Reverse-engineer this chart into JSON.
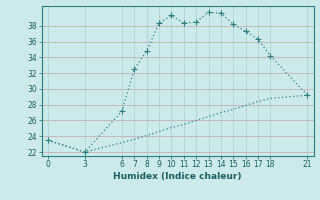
{
  "xlabel": "Humidex (Indice chaleur)",
  "bg_color": "#cdeaea",
  "grid_color_h": "#c8b0b0",
  "grid_color_v": "#aed4d4",
  "line_color": "#2a7f7f",
  "x_ticks": [
    0,
    3,
    6,
    7,
    8,
    9,
    10,
    11,
    12,
    13,
    14,
    15,
    16,
    17,
    18,
    21
  ],
  "ylim": [
    21.5,
    40.5
  ],
  "xlim": [
    -0.5,
    21.5
  ],
  "yticks": [
    22,
    24,
    26,
    28,
    30,
    32,
    34,
    36,
    38
  ],
  "series1_x": [
    0,
    3,
    6,
    7,
    8,
    9,
    10,
    11,
    12,
    13,
    14,
    15,
    16,
    17,
    18,
    21
  ],
  "series1_y": [
    23.5,
    22.0,
    27.2,
    32.5,
    34.8,
    38.3,
    39.3,
    38.3,
    38.5,
    39.7,
    39.6,
    38.2,
    37.3,
    36.3,
    34.2,
    29.2
  ],
  "series2_x": [
    0,
    3,
    6,
    7,
    8,
    9,
    10,
    11,
    12,
    13,
    14,
    15,
    16,
    17,
    18,
    21
  ],
  "series2_y": [
    23.5,
    22.0,
    23.2,
    23.6,
    24.1,
    24.6,
    25.1,
    25.5,
    26.0,
    26.5,
    27.0,
    27.4,
    27.9,
    28.4,
    28.8,
    29.2
  ],
  "marker": "+",
  "markersize": 4,
  "linewidth": 0.9,
  "xlabel_fontsize": 6.5,
  "tick_fontsize": 5.5
}
